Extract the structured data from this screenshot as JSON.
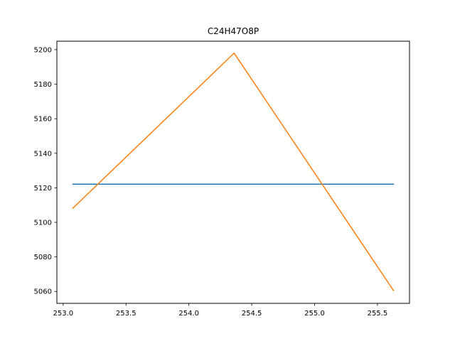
{
  "chart_data": {
    "type": "line",
    "title": "C24H47O8P",
    "xlabel": "",
    "ylabel": "",
    "xlim": [
      252.95,
      255.755
    ],
    "ylim": [
      5053.1,
      5204.9
    ],
    "x_ticks": [
      253.0,
      253.5,
      254.0,
      254.5,
      255.0,
      255.5
    ],
    "x_tick_labels": [
      "253.0",
      "253.5",
      "254.0",
      "254.5",
      "255.0",
      "255.5"
    ],
    "y_ticks": [
      5060,
      5080,
      5100,
      5120,
      5140,
      5160,
      5180,
      5200
    ],
    "y_tick_labels": [
      "5060",
      "5080",
      "5100",
      "5120",
      "5140",
      "5160",
      "5180",
      "5200"
    ],
    "grid": false,
    "series": [
      {
        "color": "#1f77b4",
        "x": [
          253.077,
          255.628
        ],
        "y": [
          5122.1,
          5122.1
        ]
      },
      {
        "color": "#ff7f0e",
        "x": [
          253.077,
          254.36,
          255.628
        ],
        "y": [
          5108.2,
          5198.0,
          5060.5
        ]
      }
    ]
  }
}
